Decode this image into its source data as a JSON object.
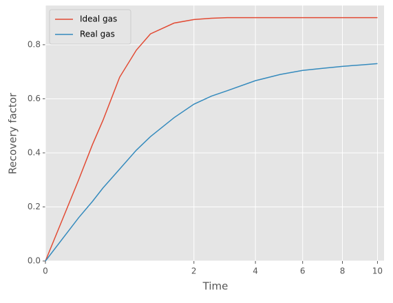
{
  "chart_data": {
    "type": "line",
    "xlabel": "Time",
    "ylabel": "Recovery factor",
    "xscale": "sqrt",
    "x": [
      0,
      0.1,
      0.2,
      0.3,
      0.5,
      0.75,
      1,
      1.5,
      2,
      2.5,
      3,
      4,
      5,
      6,
      7,
      8,
      9,
      10
    ],
    "series": [
      {
        "name": "Ideal gas",
        "color": "#E24A33",
        "values": [
          0,
          0.3,
          0.43,
          0.52,
          0.68,
          0.78,
          0.84,
          0.88,
          0.893,
          0.898,
          0.9,
          0.9,
          0.9,
          0.9,
          0.9,
          0.9,
          0.9,
          0.9
        ]
      },
      {
        "name": "Real gas",
        "color": "#348ABD",
        "values": [
          0,
          0.16,
          0.22,
          0.27,
          0.34,
          0.41,
          0.46,
          0.53,
          0.58,
          0.61,
          0.63,
          0.667,
          0.69,
          0.705,
          0.713,
          0.72,
          0.725,
          0.73
        ]
      }
    ],
    "xlim": [
      0,
      10.4
    ],
    "ylim": [
      0,
      0.945
    ],
    "xticks": [
      0,
      2,
      4,
      6,
      8,
      10
    ],
    "yticks": [
      {
        "value": 0,
        "label": "0.0"
      },
      0.2,
      0.4,
      0.6,
      0.8
    ],
    "grid": true,
    "legend": "upper left"
  }
}
